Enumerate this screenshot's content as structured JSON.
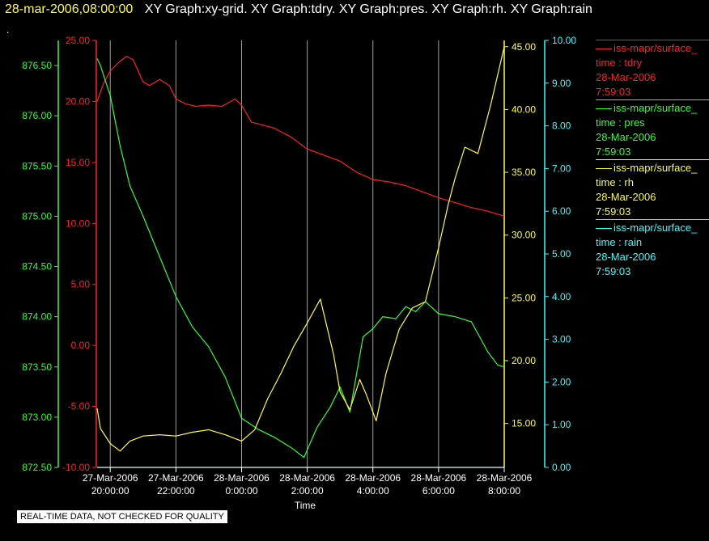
{
  "header": {
    "timestamp": "28-mar-2006,08:00:00",
    "graphs": "XY Graph:xy-grid.  XY Graph:tdry.  XY Graph:pres.  XY Graph:rh.  XY Graph:rain",
    "marker": "."
  },
  "legend": [
    {
      "source": "iss-mapr/surface_",
      "var": "time : tdry",
      "date": "28-Mar-2006",
      "time": "7:59:03",
      "color": "#ff2020"
    },
    {
      "source": "iss-mapr/surface_",
      "var": "time : pres",
      "date": "28-Mar-2006",
      "time": "7:59:03",
      "color": "#33ff33"
    },
    {
      "source": "iss-mapr/surface_",
      "var": "time : rh",
      "date": "28-Mar-2006",
      "time": "7:59:03",
      "color": "#ffff33"
    },
    {
      "source": "iss-mapr/surface_",
      "var": "time : rain",
      "date": "28-Mar-2006",
      "time": "7:59:03",
      "color": "#33ffff"
    }
  ],
  "footer": "REAL-TIME DATA, NOT CHECKED FOR QUALITY",
  "chart_data": {
    "type": "line",
    "xlabel": "Time",
    "x_range_hours": [
      19.6,
      32.0
    ],
    "x_ticks": [
      {
        "h": 20,
        "date": "27-Mar-2006",
        "time": "20:00:00"
      },
      {
        "h": 22,
        "date": "27-Mar-2006",
        "time": "22:00:00"
      },
      {
        "h": 24,
        "date": "28-Mar-2006",
        "time": "0:00:00"
      },
      {
        "h": 26,
        "date": "28-Mar-2006",
        "time": "2:00:00"
      },
      {
        "h": 28,
        "date": "28-Mar-2006",
        "time": "4:00:00"
      },
      {
        "h": 30,
        "date": "28-Mar-2006",
        "time": "6:00:00"
      },
      {
        "h": 32,
        "date": "28-Mar-2006",
        "time": "8:00:00"
      }
    ],
    "grid": "vertical",
    "axes": {
      "pres": {
        "color": "#33ff33",
        "side": "left-outer",
        "range": [
          872.5,
          876.75
        ],
        "ticks": [
          "872.50",
          "873.00",
          "873.50",
          "874.00",
          "874.50",
          "875.00",
          "875.50",
          "876.00",
          "876.50"
        ]
      },
      "tdry": {
        "color": "#ff2020",
        "side": "left-inner",
        "range": [
          -10,
          25
        ],
        "ticks": [
          "-10.00",
          "-5.00",
          "0.00",
          "5.00",
          "10.00",
          "15.00",
          "20.00",
          "25.00"
        ]
      },
      "rh": {
        "color": "#ffff33",
        "side": "right-inner",
        "range": [
          11.5,
          45.5
        ],
        "ticks": [
          "15.00",
          "20.00",
          "25.00",
          "30.00",
          "35.00",
          "40.00",
          "45.00"
        ]
      },
      "rain": {
        "color": "#33ffff",
        "side": "right-outer",
        "range": [
          0,
          10
        ],
        "ticks": [
          "0.00",
          "1.00",
          "2.00",
          "3.00",
          "4.00",
          "5.00",
          "6.00",
          "7.00",
          "8.00",
          "9.00",
          "10.00"
        ]
      }
    },
    "series": [
      {
        "name": "tdry",
        "axis": "tdry",
        "color": "#ff2020",
        "x": [
          19.6,
          19.8,
          20.0,
          20.3,
          20.5,
          20.7,
          21.0,
          21.2,
          21.5,
          21.8,
          22.0,
          22.3,
          22.6,
          23.0,
          23.4,
          23.8,
          24.0,
          24.3,
          24.6,
          25.0,
          25.5,
          26.0,
          26.5,
          27.0,
          27.5,
          28.0,
          28.5,
          29.0,
          29.5,
          30.0,
          30.5,
          31.0,
          31.5,
          32.0
        ],
        "y": [
          20.0,
          21.5,
          22.5,
          23.3,
          23.7,
          23.4,
          21.6,
          21.3,
          21.8,
          21.3,
          20.2,
          19.8,
          19.6,
          19.7,
          19.6,
          20.2,
          19.7,
          18.3,
          18.1,
          17.8,
          17.1,
          16.1,
          15.6,
          15.1,
          14.2,
          13.6,
          13.4,
          13.1,
          12.6,
          12.1,
          11.7,
          11.3,
          11.0,
          10.6
        ]
      },
      {
        "name": "pres",
        "axis": "pres",
        "color": "#33ff33",
        "x": [
          19.6,
          19.7,
          20.0,
          20.3,
          20.6,
          21.0,
          21.5,
          22.0,
          22.5,
          23.0,
          23.5,
          24.0,
          24.5,
          25.0,
          25.5,
          25.9,
          26.3,
          26.7,
          27.0,
          27.3,
          27.7,
          28.0,
          28.3,
          28.7,
          29.0,
          29.3,
          29.6,
          30.0,
          30.5,
          31.0,
          31.5,
          31.8,
          32.0
        ],
        "y": [
          876.57,
          876.5,
          876.2,
          875.7,
          875.3,
          875.0,
          874.6,
          874.2,
          873.9,
          873.7,
          873.4,
          872.99,
          872.88,
          872.8,
          872.7,
          872.6,
          872.9,
          873.1,
          873.3,
          873.05,
          873.8,
          873.88,
          874.0,
          873.98,
          874.1,
          874.05,
          874.15,
          874.03,
          874.0,
          873.95,
          873.65,
          873.52,
          873.5
        ]
      },
      {
        "name": "rh",
        "axis": "rh",
        "color": "#ffff33",
        "x": [
          19.6,
          19.7,
          20.0,
          20.3,
          20.6,
          21.0,
          21.5,
          22.0,
          22.5,
          23.0,
          23.5,
          24.0,
          24.4,
          24.8,
          25.2,
          25.6,
          26.0,
          26.4,
          26.8,
          27.0,
          27.3,
          27.6,
          27.8,
          28.1,
          28.4,
          28.8,
          29.2,
          29.6,
          30.0,
          30.3,
          30.5,
          30.8,
          31.2,
          31.6,
          32.0
        ],
        "y": [
          16.2,
          14.6,
          13.4,
          12.8,
          13.6,
          14.0,
          14.1,
          14.0,
          14.3,
          14.5,
          14.1,
          13.6,
          14.5,
          17.0,
          19.0,
          21.2,
          23.0,
          24.9,
          20.5,
          17.5,
          16.1,
          18.5,
          17.3,
          15.2,
          19.0,
          22.5,
          24.2,
          24.7,
          29.0,
          32.5,
          34.5,
          37.0,
          36.5,
          40.5,
          45.0
        ]
      },
      {
        "name": "rain",
        "axis": "rain",
        "color": "#33ffff",
        "x": [
          19.6,
          32.0
        ],
        "y": [
          0.0,
          0.0
        ]
      }
    ]
  }
}
